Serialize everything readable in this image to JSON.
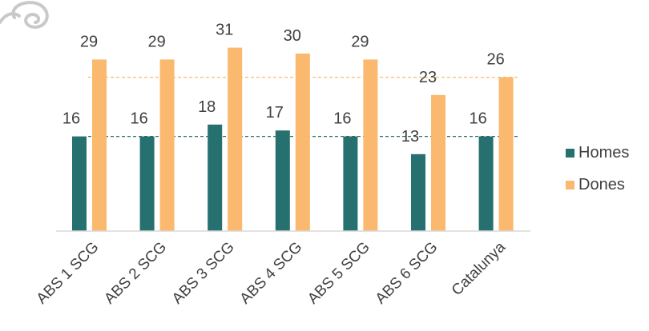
{
  "chart_data": {
    "type": "bar",
    "categories": [
      "ABS 1 SCG",
      "ABS 2 SCG",
      "ABS 3 SCG",
      "ABS 4 SCG",
      "ABS 5 SCG",
      "ABS 6 SCG",
      "Catalunya"
    ],
    "series": [
      {
        "name": "Homes",
        "values": [
          16,
          16,
          18,
          17,
          16,
          13,
          16
        ],
        "color": "#267070"
      },
      {
        "name": "Dones",
        "values": [
          29,
          29,
          31,
          30,
          29,
          23,
          26
        ],
        "color": "#FAB96E"
      }
    ],
    "reference_lines": [
      {
        "series": "Homes",
        "value": 16,
        "style": "dashed",
        "color": "#267070"
      },
      {
        "series": "Dones",
        "value": 26,
        "style": "dashed",
        "color": "#FAB96E"
      }
    ],
    "ylim": [
      0,
      33
    ],
    "grid": false,
    "legend_position": "right",
    "title": "",
    "xlabel": "",
    "ylabel": ""
  },
  "decor": {
    "logo_icon": "swirl-logo-icon"
  }
}
